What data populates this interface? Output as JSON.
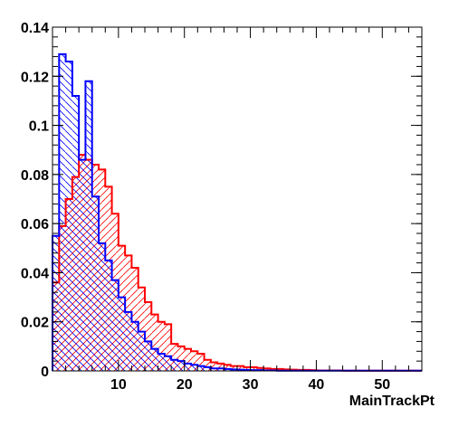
{
  "chart_data": {
    "type": "bar",
    "xlabel": "MainTrackPt",
    "ylabel": "",
    "xlim": [
      0,
      56
    ],
    "ylim": [
      0,
      0.14
    ],
    "bin_width": 1,
    "x_ticks": [
      10,
      20,
      30,
      40,
      50
    ],
    "x_tick_labels": [
      "10",
      "20",
      "30",
      "40",
      "50"
    ],
    "y_ticks": [
      0,
      0.02,
      0.04,
      0.06,
      0.08,
      0.1,
      0.12,
      0.14
    ],
    "y_tick_labels": [
      "0",
      "0.02",
      "0.04",
      "0.06",
      "0.08",
      "0.1",
      "0.12",
      "0.14"
    ],
    "grid": false,
    "legend": "none",
    "series": [
      {
        "color": "#ff0000",
        "fill": "diagonal-hatch",
        "x_start": 0,
        "values": [
          0.036,
          0.059,
          0.07,
          0.079,
          0.088,
          0.086,
          0.084,
          0.082,
          0.075,
          0.064,
          0.051,
          0.047,
          0.042,
          0.034,
          0.028,
          0.023,
          0.02,
          0.019,
          0.011,
          0.01,
          0.009,
          0.008,
          0.007,
          0.0045,
          0.0035,
          0.003,
          0.0025,
          0.002,
          0.002,
          0.0015,
          0.0015,
          0.0012,
          0.001,
          0.0008,
          0.0008,
          0.0006,
          0.0005,
          0.0004,
          0.0004,
          0.0003,
          0.0002,
          0.0002,
          0.0002,
          0.0002,
          0.0001,
          0.0001,
          0.0001,
          0.0001,
          0.0001,
          0.0001,
          0.0001,
          0.0001,
          0.0001,
          0.0001,
          0.0001,
          0.0001
        ]
      },
      {
        "color": "#0000ff",
        "fill": "cross-hatch",
        "x_start": 0,
        "values": [
          0.055,
          0.129,
          0.126,
          0.112,
          0.086,
          0.118,
          0.071,
          0.052,
          0.045,
          0.037,
          0.03,
          0.024,
          0.02,
          0.016,
          0.012,
          0.009,
          0.007,
          0.006,
          0.0045,
          0.004,
          0.003,
          0.0025,
          0.002,
          0.0015,
          0.001,
          0.001,
          0.0008,
          0.0006,
          0.0005,
          0.0004,
          0.0003,
          0.0003,
          0.0002,
          0.0002,
          0.0001,
          0.0001,
          0.0001,
          0.0001,
          0.0001,
          0.0001,
          0.0001,
          0.0001,
          0.0001,
          0.0001,
          0.0001,
          0.0001,
          0.0001,
          0.0001,
          0.0001,
          0.0001,
          0.0001,
          0.0001,
          0.0001,
          0.0001,
          0.0001,
          0.0001
        ]
      }
    ]
  }
}
